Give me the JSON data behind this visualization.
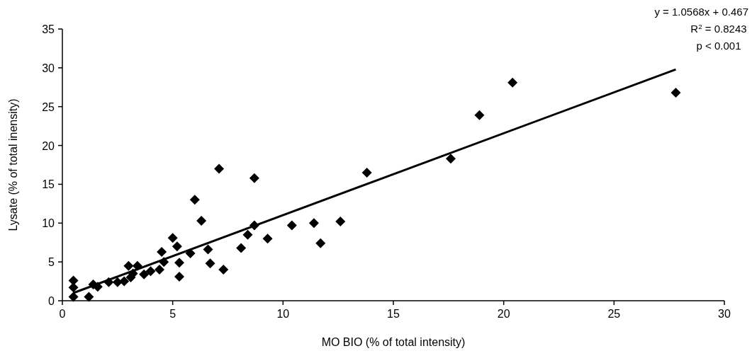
{
  "chart_data": {
    "type": "scatter",
    "xlabel": "MO BIO (% of total intensity)",
    "ylabel": "Lysate (% of total inensity)",
    "xlim": [
      0,
      30
    ],
    "xticks": [
      0,
      5,
      10,
      15,
      20,
      25,
      30
    ],
    "ylim": [
      0,
      35
    ],
    "yticks": [
      0,
      5,
      10,
      15,
      20,
      25,
      30,
      35
    ],
    "grid": false,
    "annotations": [
      "y = 1.0568x + 0.467",
      "R$^{2}$ = 0.8243",
      "p < 0.001"
    ],
    "series": [
      {
        "marker": "diamond",
        "color": "#000000",
        "x": [
          0.5,
          0.5,
          0.5,
          1.2,
          1.4,
          1.6,
          2.1,
          2.5,
          2.8,
          3.0,
          3.1,
          3.2,
          3.4,
          3.7,
          4.0,
          4.4,
          4.5,
          4.6,
          5.0,
          5.2,
          5.3,
          5.3,
          5.8,
          6.0,
          6.3,
          6.6,
          6.7,
          7.1,
          7.3,
          8.1,
          8.4,
          8.7,
          8.7,
          9.3,
          10.4,
          11.4,
          11.7,
          12.6,
          13.8,
          17.6,
          18.9,
          20.4,
          27.8
        ],
        "values": [
          2.6,
          1.7,
          0.5,
          0.5,
          2.1,
          1.8,
          2.4,
          2.4,
          2.5,
          4.5,
          3.0,
          3.5,
          4.5,
          3.4,
          3.8,
          4.0,
          6.3,
          5.0,
          8.1,
          7.0,
          4.9,
          3.1,
          6.1,
          13.0,
          10.3,
          6.6,
          4.8,
          17.0,
          4.0,
          6.8,
          8.5,
          9.7,
          15.8,
          8.0,
          9.7,
          10.0,
          7.4,
          10.2,
          16.5,
          18.3,
          23.9,
          28.1,
          26.8
        ]
      },
      {
        "type": "line",
        "color": "#000000",
        "x": [
          0.5,
          27.8
        ],
        "values": [
          1.0,
          29.8
        ]
      }
    ]
  }
}
